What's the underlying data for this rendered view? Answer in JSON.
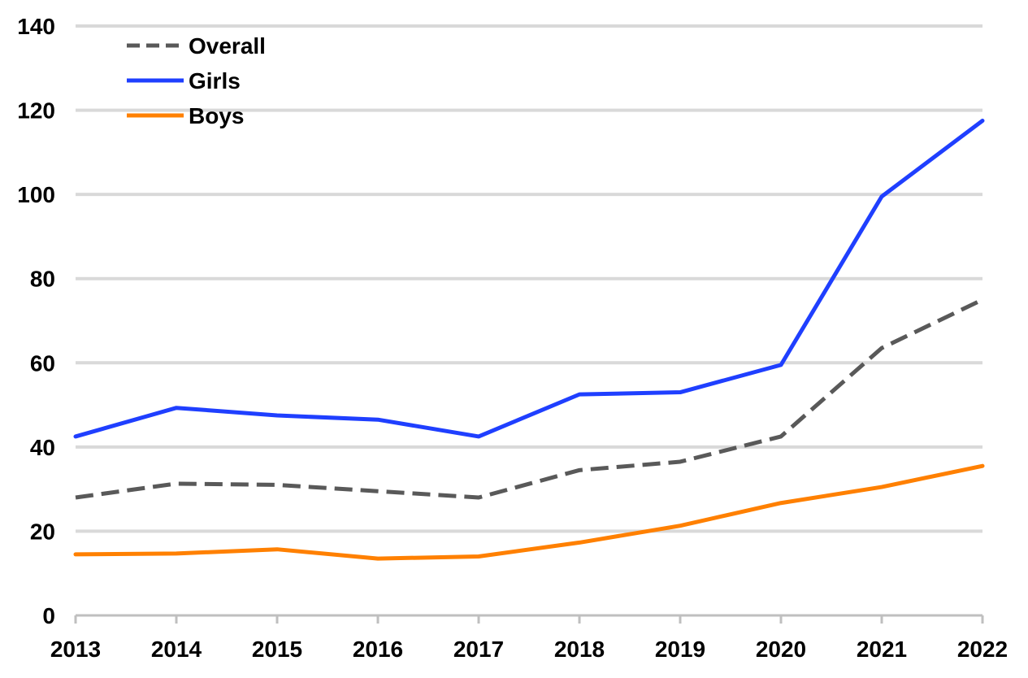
{
  "chart_data": {
    "type": "line",
    "title": "",
    "xlabel": "",
    "ylabel": "",
    "x": [
      "2013",
      "2014",
      "2015",
      "2016",
      "2017",
      "2018",
      "2019",
      "2020",
      "2021",
      "2022"
    ],
    "ylim": [
      0,
      140
    ],
    "yticks": [
      "0",
      "20",
      "40",
      "60",
      "80",
      "100",
      "120",
      "140"
    ],
    "grid": true,
    "legend_position": "top-left",
    "series": [
      {
        "name": "Overall",
        "color": "#595959",
        "dashed": true,
        "values": [
          28,
          31.3,
          31,
          29.5,
          28,
          34.5,
          36.5,
          42.5,
          63.5,
          75
        ]
      },
      {
        "name": "Girls",
        "color": "#1f3fff",
        "dashed": false,
        "values": [
          42.5,
          49.3,
          47.5,
          46.5,
          42.5,
          52.5,
          53,
          59.5,
          99.5,
          117.5
        ]
      },
      {
        "name": "Boys",
        "color": "#ff8000",
        "dashed": false,
        "values": [
          14.5,
          14.7,
          15.7,
          13.5,
          14,
          17.3,
          21.3,
          26.7,
          30.5,
          35.5
        ]
      }
    ]
  }
}
